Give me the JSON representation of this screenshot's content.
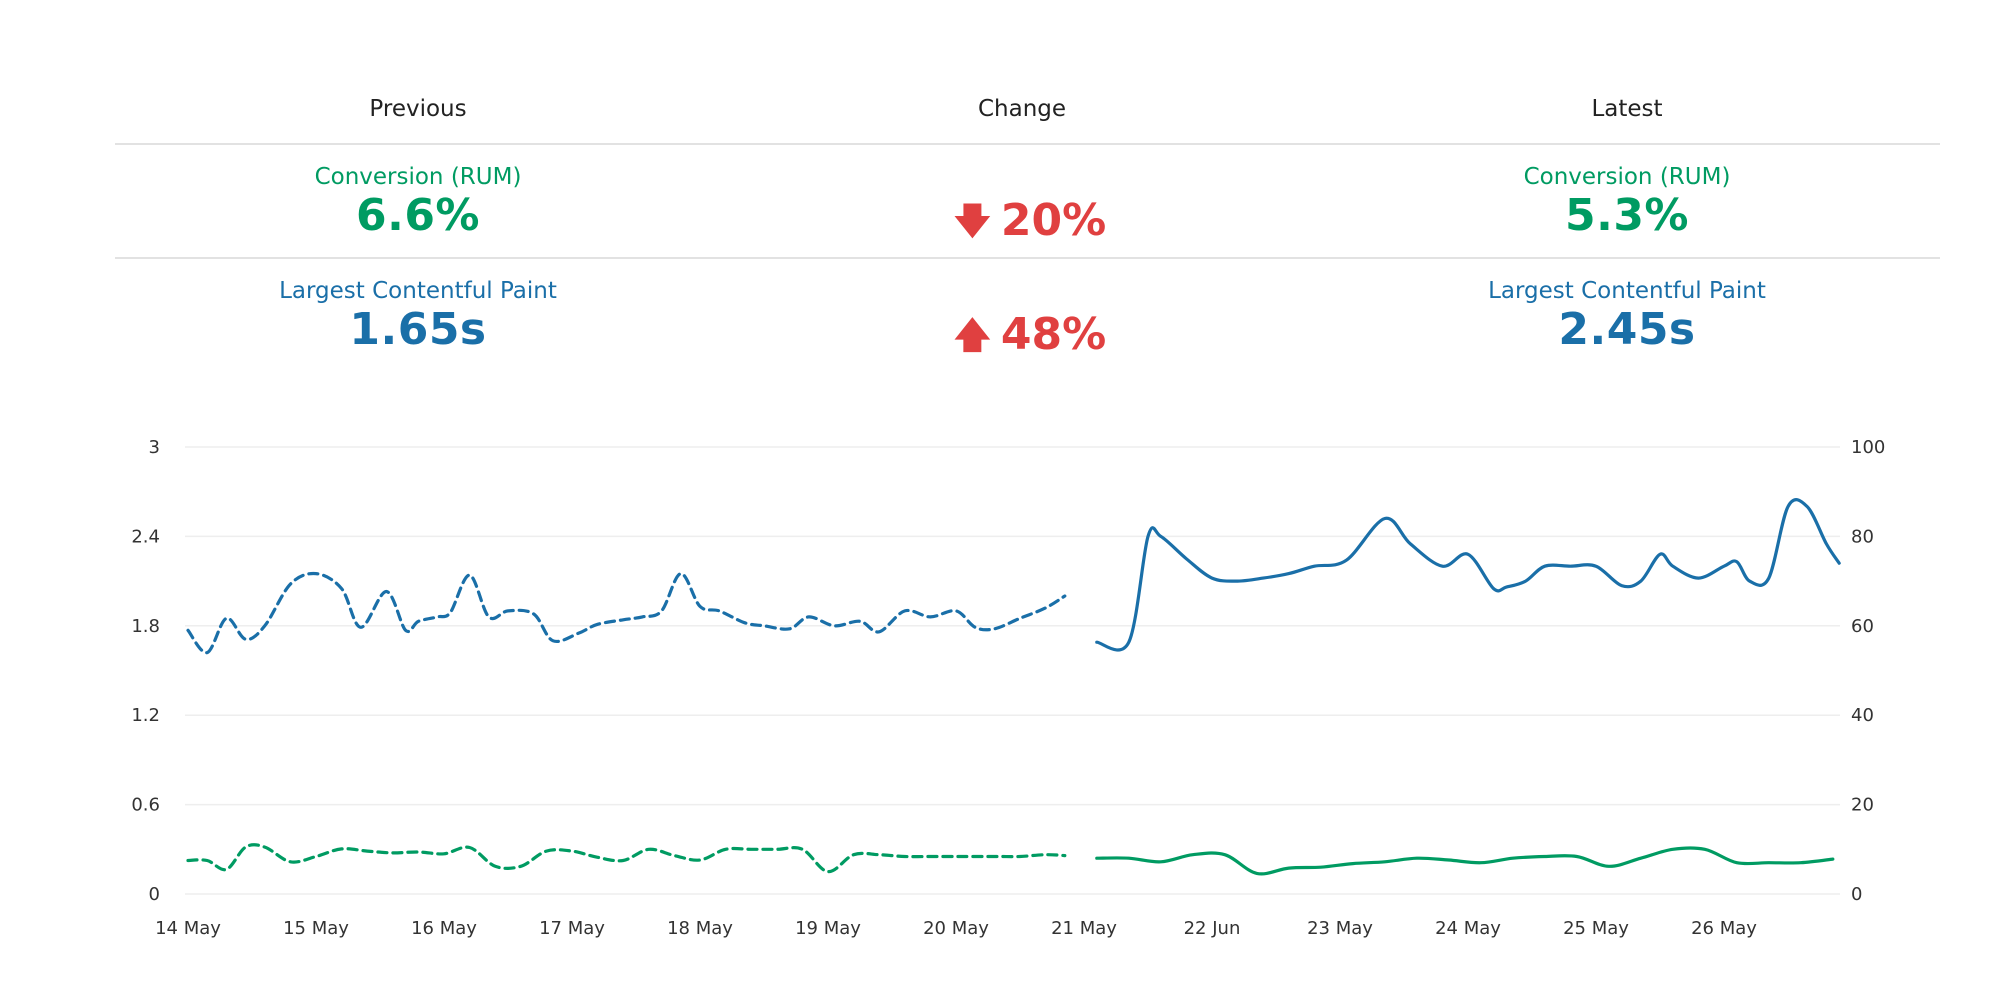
{
  "columns": {
    "previous": "Previous",
    "change": "Change",
    "latest": "Latest"
  },
  "metrics": [
    {
      "label": "Conversion (RUM)",
      "previous": "6.6%",
      "change_direction": "down",
      "change": "20%",
      "latest": "5.3%",
      "color": "#009b62"
    },
    {
      "label": "Largest Contentful Paint",
      "previous": "1.65s",
      "change_direction": "up",
      "change": "48%",
      "latest": "2.45s",
      "color": "#1a6fa8"
    }
  ],
  "colors": {
    "change": "#e04040",
    "grid": "#eeeeee",
    "axis_text": "#333333"
  },
  "chart_data": {
    "type": "line",
    "x_ticks": [
      "14 May",
      "15 May",
      "16 May",
      "17 May",
      "18 May",
      "19 May",
      "20 May",
      "21 May",
      "22 Jun",
      "23 May",
      "24 May",
      "25 May",
      "26 May"
    ],
    "y_left": {
      "ticks": [
        "0",
        "0.6",
        "1.2",
        "1.8",
        "2.4",
        "3"
      ],
      "range": [
        0,
        3
      ]
    },
    "y_right": {
      "ticks": [
        "0",
        "20",
        "40",
        "60",
        "80",
        "100"
      ],
      "range": [
        0,
        100
      ]
    },
    "grid": true,
    "series": [
      {
        "metric": "Largest Contentful Paint",
        "period": "previous",
        "style": "dashed",
        "color": "#1a6fa8",
        "x": [
          0,
          0.15,
          0.3,
          0.45,
          0.6,
          0.8,
          1.0,
          1.2,
          1.35,
          1.55,
          1.7,
          1.8,
          1.95,
          2.05,
          2.2,
          2.35,
          2.5,
          2.7,
          2.85,
          3.05,
          3.2,
          3.4,
          3.55,
          3.7,
          3.85,
          4.0,
          4.15,
          4.35,
          4.5,
          4.7,
          4.85,
          5.05,
          5.25,
          5.4,
          5.6,
          5.8,
          6.0,
          6.15,
          6.3,
          6.5,
          6.7,
          6.85
        ],
        "y": [
          1.77,
          1.62,
          1.85,
          1.71,
          1.8,
          2.08,
          2.15,
          2.05,
          1.79,
          2.03,
          1.77,
          1.83,
          1.86,
          1.89,
          2.14,
          1.86,
          1.9,
          1.88,
          1.7,
          1.75,
          1.81,
          1.84,
          1.86,
          1.9,
          2.15,
          1.93,
          1.9,
          1.82,
          1.8,
          1.78,
          1.86,
          1.8,
          1.83,
          1.76,
          1.9,
          1.86,
          1.9,
          1.79,
          1.78,
          1.85,
          1.92,
          2.0
        ]
      },
      {
        "metric": "Conversion (RUM)",
        "period": "previous",
        "style": "dashed",
        "color": "#009b62",
        "x": [
          0,
          0.15,
          0.3,
          0.45,
          0.6,
          0.8,
          1.0,
          1.2,
          1.4,
          1.6,
          1.8,
          2.0,
          2.2,
          2.4,
          2.6,
          2.8,
          3.0,
          3.2,
          3.4,
          3.6,
          3.8,
          4.0,
          4.2,
          4.4,
          4.6,
          4.8,
          5.0,
          5.2,
          5.4,
          5.6,
          5.8,
          6.0,
          6.1,
          6.25,
          6.35,
          6.5,
          6.7,
          6.85
        ],
        "y": [
          7.5,
          7.5,
          5.5,
          10.5,
          10.5,
          7.2,
          8.4,
          10.1,
          9.6,
          9.2,
          9.4,
          9.0,
          10.4,
          6.2,
          6.2,
          9.6,
          9.6,
          8.2,
          7.5,
          10.0,
          8.6,
          7.6,
          10.0,
          10.0,
          10.0,
          10.0,
          5.0,
          8.8,
          8.8,
          8.4,
          8.4,
          8.4,
          8.4,
          8.4,
          8.4,
          8.4,
          8.8,
          8.6
        ]
      },
      {
        "metric": "Largest Contentful Paint",
        "period": "latest",
        "style": "solid",
        "color": "#1a6fa8",
        "x": [
          7.1,
          7.35,
          7.5,
          7.6,
          7.8,
          8.0,
          8.2,
          8.4,
          8.6,
          8.8,
          9.05,
          9.35,
          9.55,
          9.8,
          10.0,
          10.2,
          10.3,
          10.45,
          10.6,
          10.8,
          11.0,
          11.2,
          11.35,
          11.5,
          11.6,
          11.8,
          12.0,
          12.1,
          12.2,
          12.35,
          12.5,
          12.65,
          12.8,
          12.9
        ],
        "y": [
          1.69,
          1.69,
          2.4,
          2.4,
          2.25,
          2.12,
          2.1,
          2.12,
          2.15,
          2.2,
          2.24,
          2.52,
          2.35,
          2.2,
          2.28,
          2.05,
          2.06,
          2.1,
          2.2,
          2.2,
          2.2,
          2.07,
          2.1,
          2.28,
          2.2,
          2.12,
          2.2,
          2.23,
          2.1,
          2.12,
          2.6,
          2.6,
          2.35,
          2.22
        ]
      },
      {
        "metric": "Conversion (RUM)",
        "period": "latest",
        "style": "solid",
        "color": "#009b62",
        "x": [
          7.1,
          7.35,
          7.6,
          7.85,
          8.1,
          8.35,
          8.6,
          8.85,
          9.1,
          9.35,
          9.6,
          9.85,
          10.1,
          10.35,
          10.6,
          10.85,
          11.1,
          11.35,
          11.6,
          11.85,
          12.1,
          12.35,
          12.6,
          12.85
        ],
        "y": [
          8.0,
          8.0,
          7.2,
          8.8,
          8.8,
          4.6,
          5.8,
          6.0,
          6.8,
          7.2,
          8.0,
          7.6,
          7.0,
          8.0,
          8.4,
          8.4,
          6.2,
          8.0,
          10.0,
          10.0,
          7.0,
          7.0,
          7.0,
          7.8
        ]
      }
    ]
  }
}
